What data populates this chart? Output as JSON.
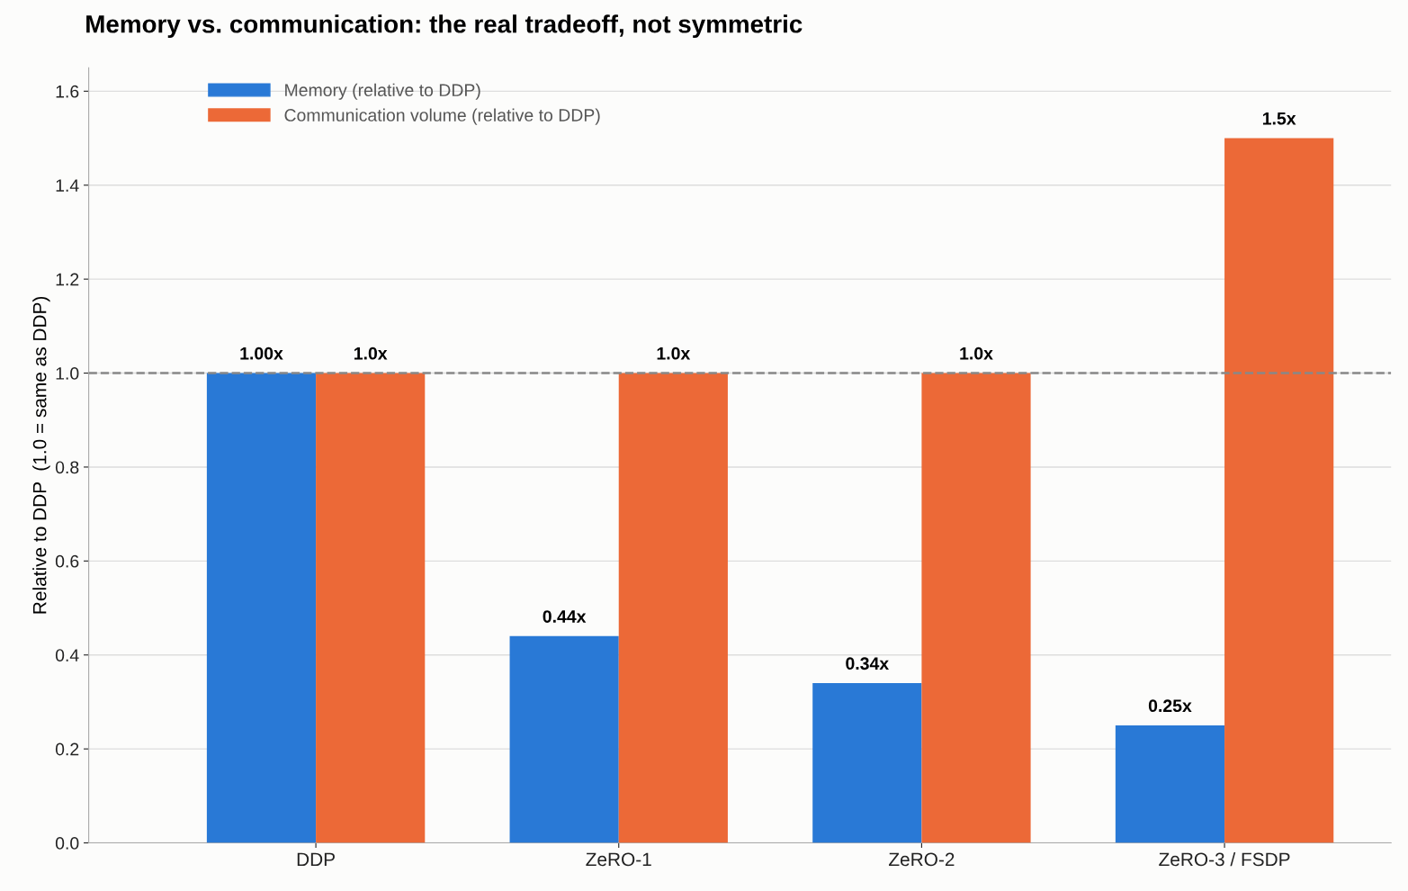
{
  "chart_data": {
    "type": "bar",
    "title": "Memory vs. communication: the real tradeoff, not symmetric",
    "ylabel": "Relative to DDP  (1.0 = same as DDP)",
    "categories": [
      "DDP",
      "ZeRO-1",
      "ZeRO-2",
      "ZeRO-3 / FSDP"
    ],
    "series": [
      {
        "name": "Memory (relative to DDP)",
        "color": "#2979d6",
        "values": [
          1.0,
          0.44,
          0.34,
          0.25
        ],
        "value_labels": [
          "1.00x",
          "0.44x",
          "0.34x",
          "0.25x"
        ]
      },
      {
        "name": "Communication volume (relative to DDP)",
        "color": "#ec6937",
        "values": [
          1.0,
          1.0,
          1.0,
          1.5
        ],
        "value_labels": [
          "1.0x",
          "1.0x",
          "1.0x",
          "1.5x"
        ]
      }
    ],
    "ylim": [
      0,
      1.65
    ],
    "yticks": [
      {
        "value": 0,
        "label": "0.0"
      },
      {
        "value": 0.2,
        "label": "0.2"
      },
      {
        "value": 0.4,
        "label": "0.4"
      },
      {
        "value": 0.6,
        "label": "0.6"
      },
      {
        "value": 0.8,
        "label": "0.8"
      },
      {
        "value": 1.0,
        "label": "1.0"
      },
      {
        "value": 1.2,
        "label": "1.2"
      },
      {
        "value": 1.4,
        "label": "1.4"
      },
      {
        "value": 1.6,
        "label": "1.6"
      }
    ],
    "ref_lines": [
      {
        "axis": "y",
        "value": 1.0,
        "color": "#888888",
        "line_style": "dashed"
      }
    ],
    "grid": "y",
    "legend": "top left"
  }
}
